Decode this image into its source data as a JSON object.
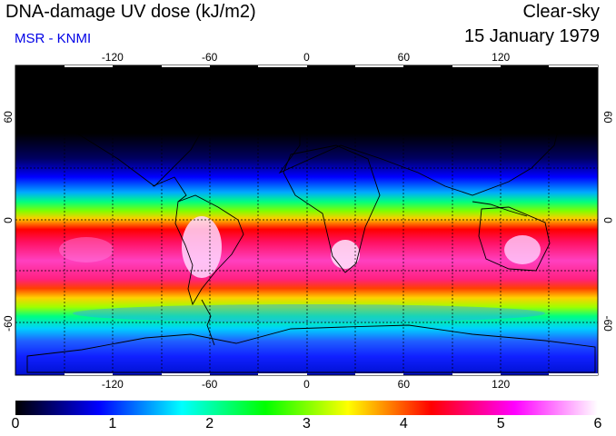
{
  "header": {
    "title": "DNA-damage UV dose (kJ/m2)",
    "credit": "MSR - KNMI",
    "condition": "Clear-sky",
    "date": "15 January 1979"
  },
  "axes": {
    "lon_ticks": [
      "-120",
      "-60",
      "0",
      "60",
      "120"
    ],
    "lon_values": [
      -120,
      -60,
      0,
      60,
      120
    ],
    "lat_ticks": [
      "60",
      "0",
      "-60"
    ],
    "lat_values": [
      60,
      0,
      -60
    ]
  },
  "colorbar": {
    "labels": [
      "0",
      "1",
      "2",
      "3",
      "4",
      "5",
      "6"
    ],
    "min": 0,
    "max": 6,
    "colors": [
      "#000000",
      "#0000ff",
      "#00ffff",
      "#00ff00",
      "#ffff00",
      "#ff0000",
      "#ff00ff",
      "#ffffff"
    ]
  }
}
